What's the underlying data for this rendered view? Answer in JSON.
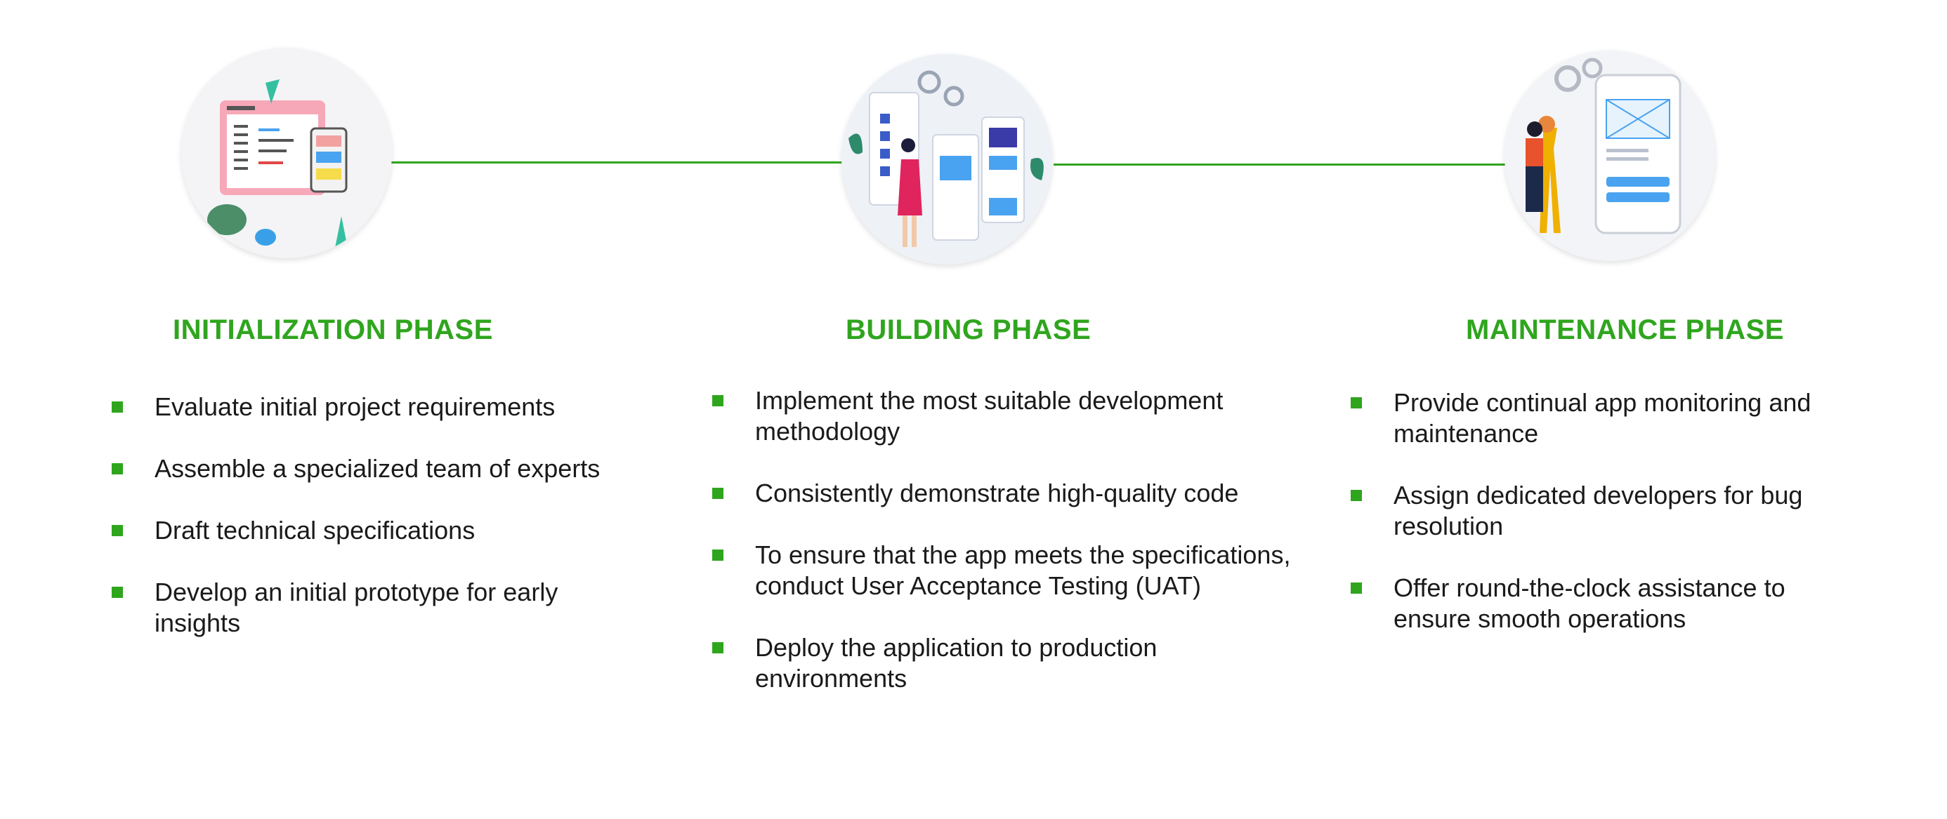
{
  "colors": {
    "accent": "#2fa51e",
    "text": "#1a1a1a",
    "background": "#ffffff"
  },
  "phases": [
    {
      "title": "INITIALIZATION PHASE",
      "illustration": "coding-ui-illustration",
      "items": [
        "Evaluate initial project requirements",
        "Assemble a specialized team of experts",
        "Draft technical specifications",
        "Develop an initial prototype for early insights"
      ]
    },
    {
      "title": "BUILDING PHASE",
      "illustration": "app-building-illustration",
      "items": [
        "Implement the most suitable development methodology",
        "Consistently demonstrate high-quality code",
        "To ensure that the app meets the specifications, conduct User Acceptance Testing (UAT)",
        "Deploy the application to production environments"
      ]
    },
    {
      "title": "MAINTENANCE PHASE",
      "illustration": "wrench-phone-illustration",
      "items": [
        "Provide continual app monitoring and maintenance",
        "Assign dedicated developers for bug resolution",
        "Offer round-the-clock assistance to ensure smooth operations"
      ]
    }
  ]
}
